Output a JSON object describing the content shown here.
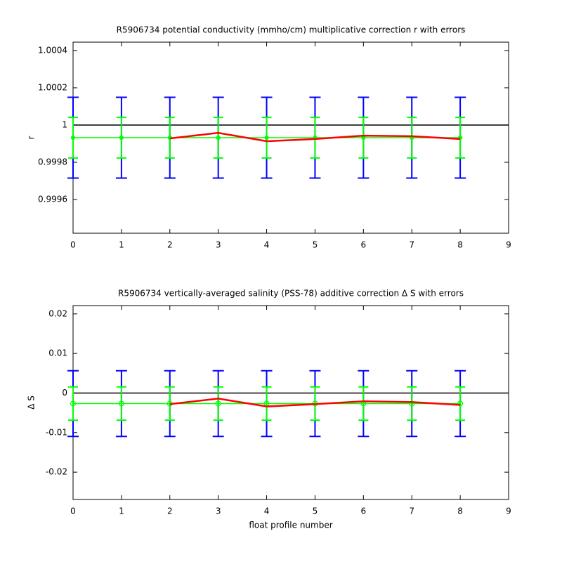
{
  "chart_data": [
    {
      "type": "errorbar",
      "title": "R5906734 potential conductivity (mmho/cm) multiplicative correction r with errors",
      "ylabel": "r",
      "xlim": [
        0,
        9
      ],
      "xticks": [
        0,
        1,
        2,
        3,
        4,
        5,
        6,
        7,
        8,
        9
      ],
      "ylim": [
        0.999419,
        1.000445
      ],
      "yticks": [
        0.9996,
        0.9998,
        1,
        1.0002,
        1.0004
      ],
      "hline": 1,
      "x": [
        0,
        1,
        2,
        3,
        4,
        5,
        6,
        7,
        8
      ],
      "series": [
        {
          "color": "#0000ff",
          "values": [
            0.999932,
            0.999932,
            0.999932,
            0.999932,
            0.999932,
            0.999932,
            0.999932,
            0.999932,
            0.999932
          ],
          "errors": [
            0.000217,
            0.000217,
            0.000217,
            0.000217,
            0.000217,
            0.000217,
            0.000217,
            0.000217,
            0.000217
          ]
        },
        {
          "color": "#00ff00",
          "values": [
            0.999932,
            0.999932,
            0.999932,
            0.999932,
            0.999932,
            0.999932,
            0.999932,
            0.999932,
            0.999932
          ],
          "errors": [
            0.000109,
            0.000109,
            0.000109,
            0.000109,
            0.000109,
            0.000109,
            0.000109,
            0.000109,
            0.000109
          ],
          "marker": "dot"
        },
        {
          "color": "#ff0000",
          "values": [
            null,
            null,
            0.999928,
            0.999958,
            0.999913,
            0.999925,
            0.999943,
            0.99994,
            0.999925
          ]
        }
      ]
    },
    {
      "type": "errorbar",
      "title": "R5906734 vertically-averaged salinity (PSS-78) additive correction Δ S with errors",
      "ylabel": "Δ S",
      "xlabel": "float profile number",
      "xlim": [
        0,
        9
      ],
      "xticks": [
        0,
        1,
        2,
        3,
        4,
        5,
        6,
        7,
        8,
        9
      ],
      "ylim": [
        -0.0269,
        0.0221
      ],
      "yticks": [
        -0.02,
        -0.01,
        0,
        0.01,
        0.02
      ],
      "hline": 0,
      "x": [
        0,
        1,
        2,
        3,
        4,
        5,
        6,
        7,
        8
      ],
      "series": [
        {
          "color": "#0000ff",
          "values": [
            -0.00266,
            -0.00266,
            -0.00266,
            -0.00266,
            -0.00266,
            -0.00266,
            -0.00266,
            -0.00266,
            -0.00266
          ],
          "errors": [
            0.0083,
            0.0083,
            0.0083,
            0.0083,
            0.0083,
            0.0083,
            0.0083,
            0.0083,
            0.0083
          ]
        },
        {
          "color": "#00ff00",
          "values": [
            -0.00266,
            -0.00266,
            -0.00266,
            -0.00266,
            -0.00266,
            -0.00266,
            -0.00266,
            -0.00266,
            -0.00266
          ],
          "errors": [
            0.0042,
            0.0042,
            0.0042,
            0.0042,
            0.0042,
            0.0042,
            0.0042,
            0.0042,
            0.0042
          ],
          "marker": "circle"
        },
        {
          "color": "#ff0000",
          "values": [
            null,
            null,
            -0.0028,
            -0.0014,
            -0.0034,
            -0.0028,
            -0.0021,
            -0.0023,
            -0.003
          ]
        }
      ]
    }
  ]
}
